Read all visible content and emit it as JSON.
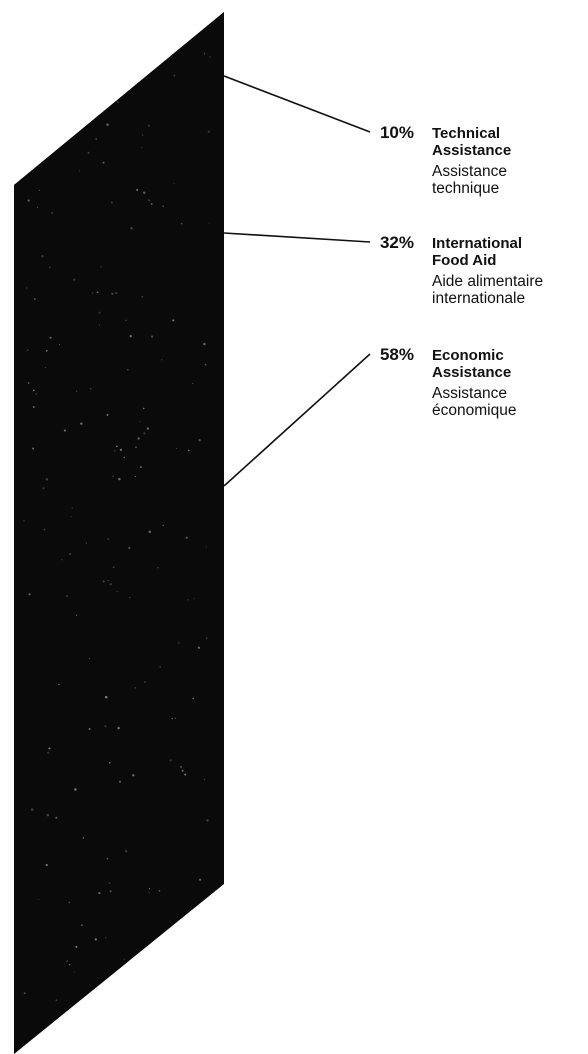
{
  "chart_data": {
    "type": "bar",
    "orientation": "vertical-stacked-single",
    "categories": [
      "Technical Assistance",
      "International Food Aid",
      "Economic Assistance"
    ],
    "values": [
      10,
      32,
      58
    ],
    "unit": "%",
    "labels": [
      {
        "value_text": "10%",
        "english": [
          "Technical",
          "Assistance"
        ],
        "french": [
          "Assistance",
          "technique"
        ]
      },
      {
        "value_text": "32%",
        "english": [
          "International",
          "Food Aid"
        ],
        "french": [
          "Aide alimentaire",
          "internationale"
        ]
      },
      {
        "value_text": "58%",
        "english": [
          "Economic",
          "Assistance"
        ],
        "french": [
          "Assistance",
          "économique"
        ]
      }
    ],
    "colors": {
      "bar": "#0a0a0a",
      "text": "#111111",
      "leader": "#111111"
    },
    "legend": "none",
    "grid": false
  }
}
